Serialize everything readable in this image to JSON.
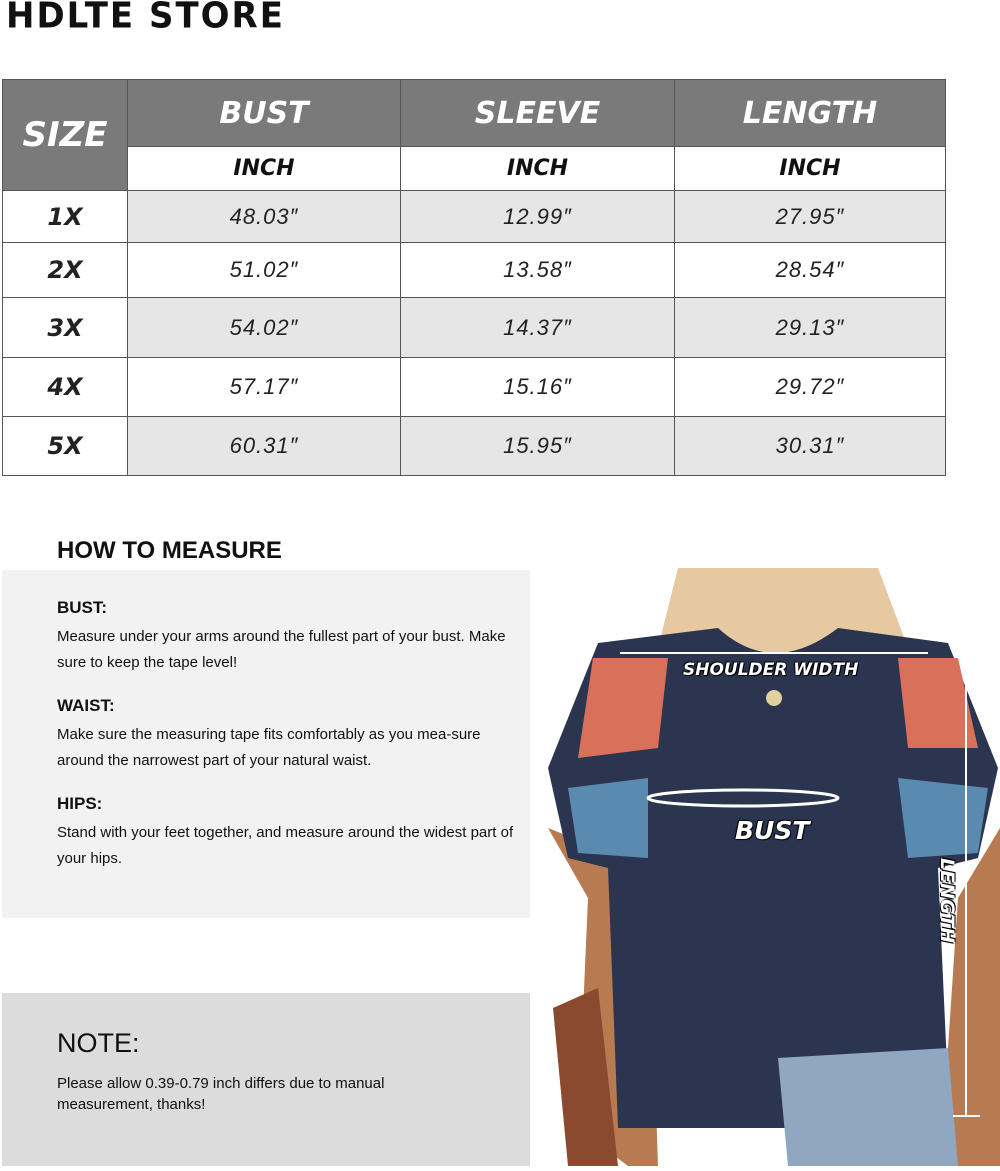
{
  "store_name": "HDLTE STORE",
  "table": {
    "size_header": "SIZE",
    "columns": [
      {
        "label": "BUST",
        "unit": "INCH"
      },
      {
        "label": "SLEEVE",
        "unit": "INCH"
      },
      {
        "label": "LENGTH",
        "unit": "INCH"
      }
    ],
    "rows": [
      {
        "size": "1X",
        "bust": "48.03″",
        "sleeve": "12.99″",
        "length": "27.95″"
      },
      {
        "size": "2X",
        "bust": "51.02″",
        "sleeve": "13.58″",
        "length": "28.54″"
      },
      {
        "size": "3X",
        "bust": "54.02″",
        "sleeve": "14.37″",
        "length": "29.13″"
      },
      {
        "size": "4X",
        "bust": "57.17″",
        "sleeve": "15.16″",
        "length": "29.72″"
      },
      {
        "size": "5X",
        "bust": "60.31″",
        "sleeve": "15.95″",
        "length": "30.31″"
      }
    ]
  },
  "how_to_measure": {
    "title": "HOW TO MEASURE",
    "sections": [
      {
        "heading": "BUST:",
        "text": "Measure under your arms around the fullest part of your bust. Make sure to keep the tape level!"
      },
      {
        "heading": "WAIST:",
        "text": "Make sure the measuring tape fits comfortably as you mea-sure around the narrowest part of your natural waist."
      },
      {
        "heading": "HIPS:",
        "text": "Stand with your feet together, and measure around the widest part of your hips."
      }
    ]
  },
  "note": {
    "title": "NOTE:",
    "text": "Please allow 0.39-0.79 inch differs due to manual measurement, thanks!"
  },
  "photo_labels": {
    "shoulder": "SHOULDER WIDTH",
    "bust": "BUST",
    "length": "LENGTH"
  }
}
